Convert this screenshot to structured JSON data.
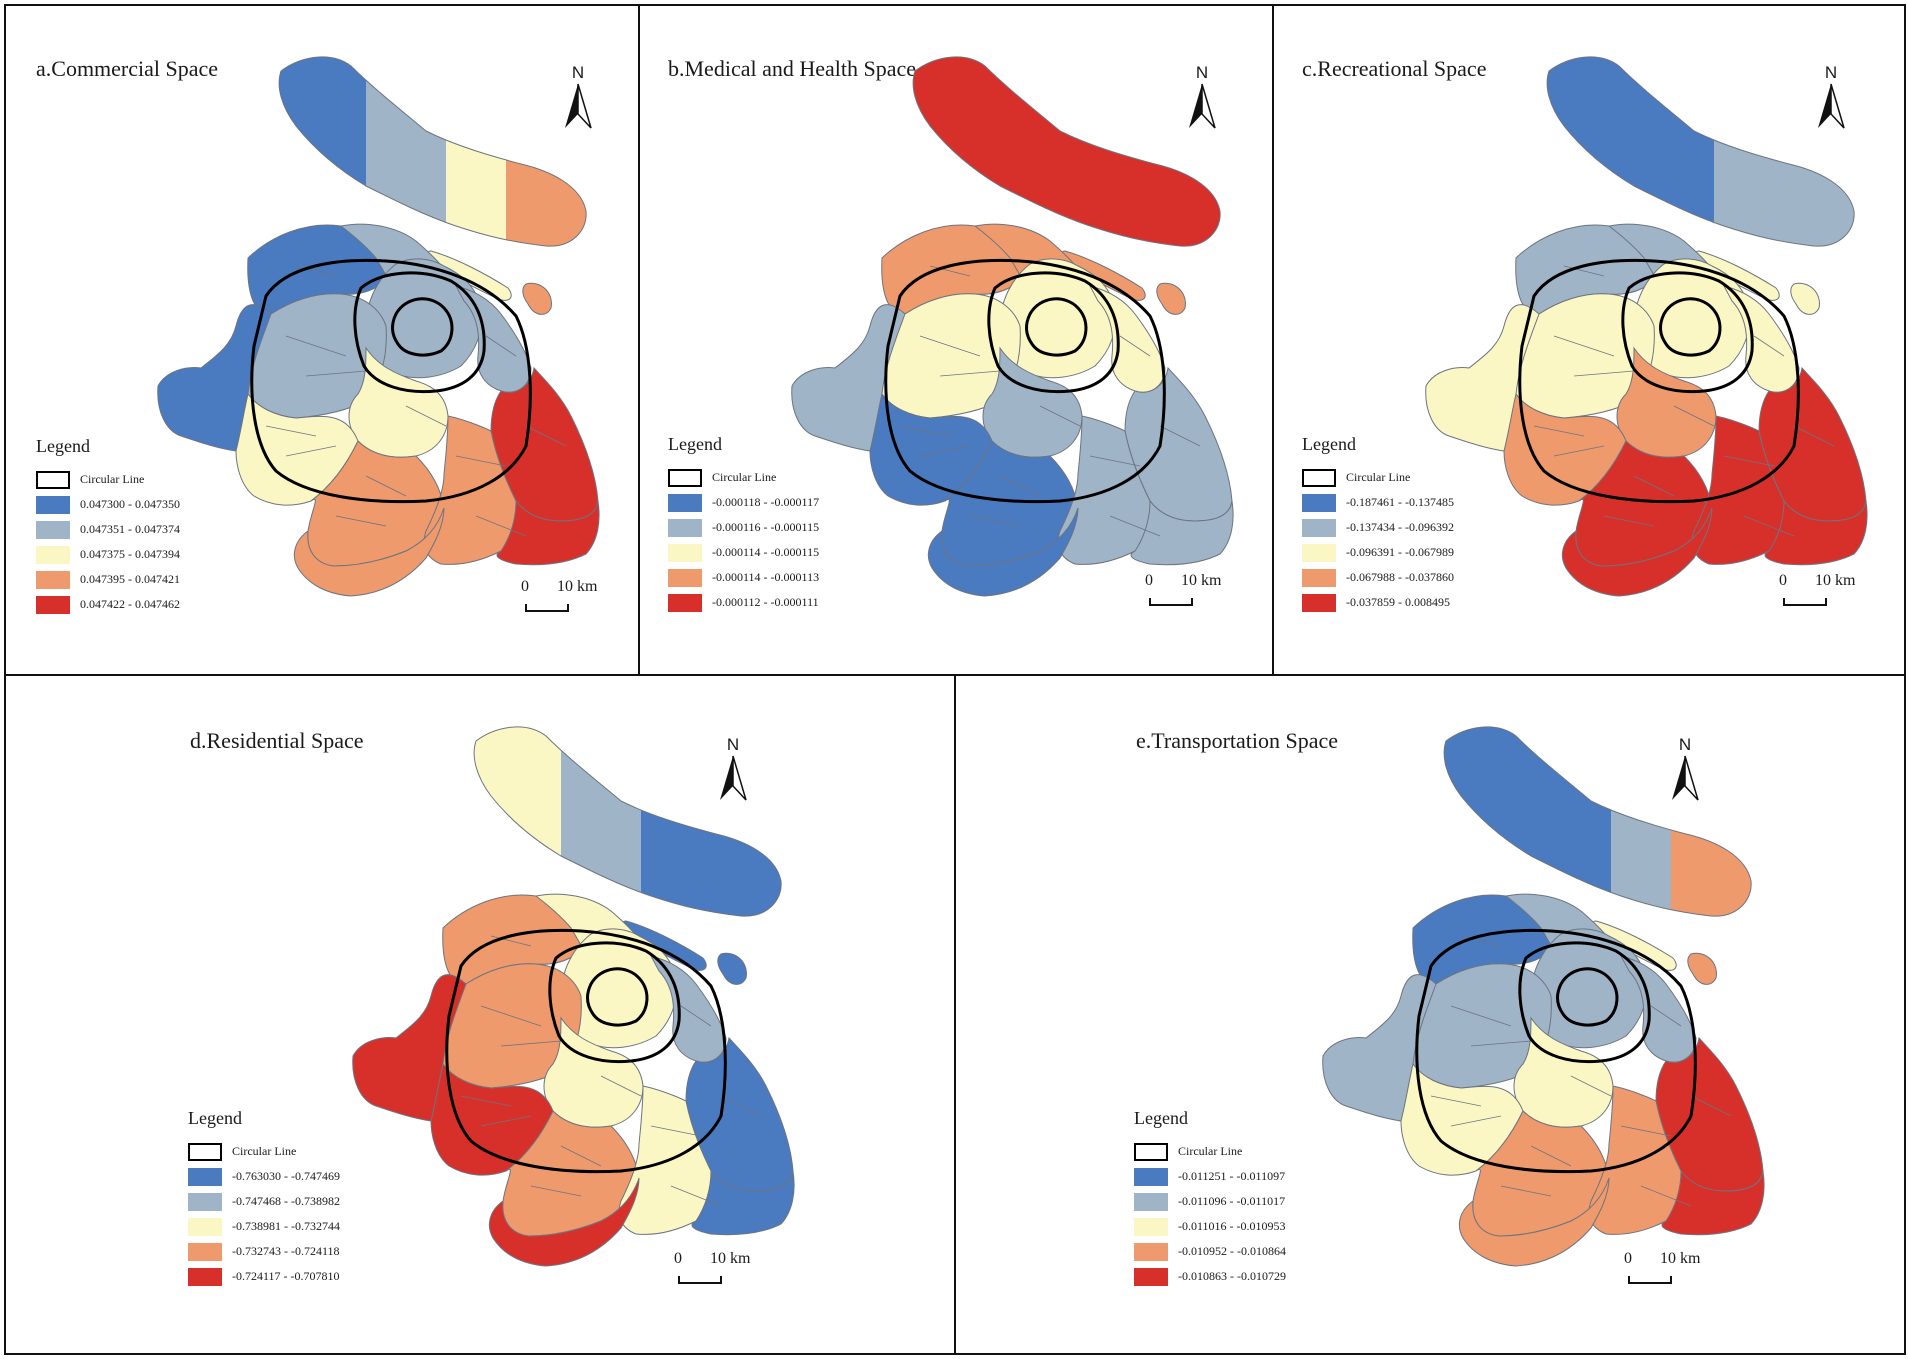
{
  "figure": {
    "panels": [
      {
        "title": "a.Commercial Space",
        "north_label": "N",
        "legend_title": "Legend",
        "circular_line_label": "Circular Line",
        "classes": [
          {
            "label": "0.047300 - 0.047350",
            "color": "#4a7abf"
          },
          {
            "label": "0.047351 - 0.047374",
            "color": "#9fb4c6"
          },
          {
            "label": "0.047375 - 0.047394",
            "color": "#fbf7c4"
          },
          {
            "label": "0.047395 - 0.047421",
            "color": "#ee9a6c"
          },
          {
            "label": "0.047422 - 0.047462",
            "color": "#d7302a"
          }
        ],
        "scale_start": "0",
        "scale_end": "10 km"
      },
      {
        "title": "b.Medical and Health Space",
        "north_label": "N",
        "legend_title": "Legend",
        "circular_line_label": "Circular Line",
        "classes": [
          {
            "label": "-0.000118 - -0.000117",
            "color": "#4a7abf"
          },
          {
            "label": "-0.000116 - -0.000115",
            "color": "#9fb4c6"
          },
          {
            "label": "-0.000114 - -0.000115",
            "color": "#fbf7c4"
          },
          {
            "label": "-0.000114 - -0.000113",
            "color": "#ee9a6c"
          },
          {
            "label": "-0.000112 - -0.000111",
            "color": "#d7302a"
          }
        ],
        "scale_start": "0",
        "scale_end": "10 km"
      },
      {
        "title": "c.Recreational Space",
        "north_label": "N",
        "legend_title": "Legend",
        "circular_line_label": "Circular Line",
        "classes": [
          {
            "label": "-0.187461 - -0.137485",
            "color": "#4a7abf"
          },
          {
            "label": "-0.137434 - -0.096392",
            "color": "#9fb4c6"
          },
          {
            "label": "-0.096391 - -0.067989",
            "color": "#fbf7c4"
          },
          {
            "label": "-0.067988 - -0.037860",
            "color": "#ee9a6c"
          },
          {
            "label": "-0.037859 - 0.008495",
            "color": "#d7302a"
          }
        ],
        "scale_start": "0",
        "scale_end": "10 km"
      },
      {
        "title": "d.Residential Space",
        "north_label": "N",
        "legend_title": "Legend",
        "circular_line_label": "Circular Line",
        "classes": [
          {
            "label": "-0.763030 - -0.747469",
            "color": "#4a7abf"
          },
          {
            "label": "-0.747468 - -0.738982",
            "color": "#9fb4c6"
          },
          {
            "label": "-0.738981 - -0.732744",
            "color": "#fbf7c4"
          },
          {
            "label": "-0.732743 - -0.724118",
            "color": "#ee9a6c"
          },
          {
            "label": "-0.724117 - -0.707810",
            "color": "#d7302a"
          }
        ],
        "scale_start": "0",
        "scale_end": "10 km"
      },
      {
        "title": "e.Transportation Space",
        "north_label": "N",
        "legend_title": "Legend",
        "circular_line_label": "Circular Line",
        "classes": [
          {
            "label": "-0.011251 - -0.011097",
            "color": "#4a7abf"
          },
          {
            "label": "-0.011096 - -0.011017",
            "color": "#9fb4c6"
          },
          {
            "label": "-0.011016 - -0.010953",
            "color": "#fbf7c4"
          },
          {
            "label": "-0.010952 - -0.010864",
            "color": "#ee9a6c"
          },
          {
            "label": "-0.010863 - -0.010729",
            "color": "#d7302a"
          }
        ],
        "scale_start": "0",
        "scale_end": "10 km"
      }
    ]
  }
}
